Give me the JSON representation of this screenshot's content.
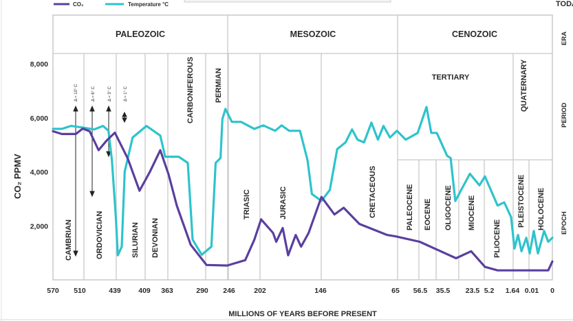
{
  "legend": [
    {
      "label": "CO₂",
      "color": "#5a3f9e"
    },
    {
      "label": "Temperature °C",
      "color": "#2ec3cc"
    }
  ],
  "today_label": "TODAY",
  "row_labels": {
    "era": "ERA",
    "period": "PERIOD",
    "epoch": "EPOCH"
  },
  "eras": [
    "PALEOZOIC",
    "MESOZOIC",
    "CENOZOIC"
  ],
  "periods": [
    "CAMBRIAN",
    "ORDOVICIAN",
    "SILURIAN",
    "DEVONIAN",
    "CARBONIFEROUS",
    "PERMIAN",
    "TRIASIC",
    "JURASIC",
    "CRETACEOUS",
    "TERTIARY",
    "QUATERNARY"
  ],
  "epochs": [
    "PALEOCENE",
    "EOCENE",
    "OLIGOCENE",
    "MIOCENE",
    "PLIOCENE",
    "PLEISTOCENE",
    "HOLOCENE"
  ],
  "annotations": [
    "Δ ≈ 10° C",
    "Δ ≈ 6° C",
    "Δ ≈ 3° C",
    "Δ ≈ 1° C"
  ],
  "chart_data": {
    "type": "line",
    "xlabel": "MILLIONS OF YEARS BEFORE PRESENT",
    "ylabel": "CO₂ PPMV",
    "x_ticks": [
      570,
      510,
      439,
      409,
      363,
      290,
      246,
      202,
      146,
      65,
      56.5,
      35.5,
      23.5,
      5.2,
      1.64,
      0.01,
      0
    ],
    "x_tick_labels": [
      "570",
      "510",
      "439",
      "409",
      "363",
      "290",
      "246",
      "202",
      "146",
      "65",
      "56.5",
      "35.5",
      "23.5",
      "5.2",
      "1.64",
      "0.01",
      "0"
    ],
    "x_scale": "non-uniform (ticks evenly placed by geologic boundary)",
    "x_reversed": true,
    "ylim": [
      0,
      8000
    ],
    "y_ticks": [
      2000,
      4000,
      6000,
      8000
    ],
    "y_tick_labels": [
      "2,000",
      "4,000",
      "6,000",
      "8,000"
    ],
    "grid": false,
    "legend_position": "top-left",
    "series": [
      {
        "name": "CO₂",
        "color": "#5a3f9e",
        "x": [
          570,
          550,
          519,
          504,
          490,
          472,
          456,
          439,
          426,
          414,
          398,
          377,
          360,
          343,
          314,
          283,
          249,
          223,
          210,
          201,
          190,
          187,
          181,
          176,
          169,
          164,
          157,
          145,
          131,
          121,
          104,
          74,
          65,
          56.7,
          30.2,
          24.1,
          9.8,
          3.9,
          0.77,
          0.002,
          0
        ],
        "y": [
          5500,
          5400,
          5400,
          5600,
          5500,
          4800,
          5150,
          5450,
          4500,
          3300,
          4000,
          4800,
          3900,
          2750,
          1300,
          550,
          530,
          730,
          1490,
          2240,
          1740,
          1410,
          1920,
          910,
          1660,
          1230,
          1740,
          3070,
          2420,
          2670,
          2070,
          1660,
          1610,
          1410,
          800,
          1060,
          480,
          350,
          350,
          350,
          680
        ]
      },
      {
        "name": "Temperature °C",
        "color": "#2ec3cc",
        "x": [
          570,
          550,
          530,
          504,
          481,
          463,
          452,
          445,
          438,
          436,
          432,
          429,
          421,
          405,
          377,
          367,
          339,
          320,
          310,
          291,
          275,
          268,
          260,
          257,
          252,
          242,
          229,
          210,
          199,
          188,
          182,
          175,
          165,
          158,
          154,
          145,
          136,
          128,
          119,
          112,
          106,
          99,
          91,
          84,
          78,
          71,
          64.5,
          61.5,
          57.4,
          50.8,
          46.3,
          41.2,
          33.8,
          32.4,
          30.5,
          24.6,
          15.9,
          9.8,
          3.9,
          2.9,
          1.85,
          1.47,
          1.17,
          0.88,
          0.47,
          0.18,
          0.009,
          0.007,
          0.004,
          0.002,
          0
        ],
        "y": [
          5590,
          5590,
          5700,
          5640,
          5570,
          5700,
          5520,
          4430,
          2320,
          910,
          1230,
          4010,
          5270,
          5700,
          5340,
          4560,
          4560,
          4330,
          1490,
          930,
          1230,
          4330,
          4510,
          5950,
          6330,
          5850,
          5850,
          5590,
          5720,
          5520,
          5720,
          5520,
          5520,
          4430,
          3180,
          2920,
          3330,
          4840,
          5090,
          5570,
          5190,
          5090,
          5820,
          5190,
          5700,
          5270,
          5520,
          5190,
          5440,
          6400,
          5440,
          5440,
          4590,
          4510,
          2920,
          3930,
          3500,
          3830,
          2750,
          2870,
          2320,
          1160,
          1660,
          1060,
          1560,
          980,
          1810,
          980,
          1810,
          1410,
          1560
        ]
      }
    ]
  }
}
